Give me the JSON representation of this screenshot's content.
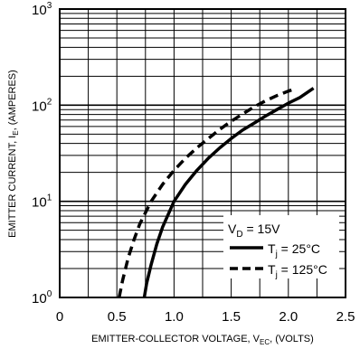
{
  "chart_data": {
    "type": "line",
    "xlabel": {
      "main": "EMITTER-COLLECTOR VOLTAGE, V",
      "sub": "EC",
      "suffix": ", (VOLTS)"
    },
    "ylabel": {
      "main": "EMITTER CURRENT, I",
      "sub": "E",
      "suffix": ", (AMPERES)"
    },
    "xlim": [
      0,
      2.5
    ],
    "ylim": [
      1,
      1000
    ],
    "yscale": "log",
    "grid": true,
    "x_ticks": [
      "0",
      "0.5",
      "1.0",
      "1.5",
      "2.0",
      "2.5"
    ],
    "y_ticks": [
      {
        "base": "10",
        "exp": "0"
      },
      {
        "base": "10",
        "exp": "1"
      },
      {
        "base": "10",
        "exp": "2"
      },
      {
        "base": "10",
        "exp": "3"
      }
    ],
    "legend": {
      "placement": "bottom-right",
      "condition": {
        "main": "V",
        "sub": "D",
        "suffix": " = 15V"
      },
      "entries": [
        {
          "main": "T",
          "sub": "j",
          "suffix": " = 25°C",
          "style": "solid"
        },
        {
          "main": "T",
          "sub": "j",
          "suffix": " = 125°C",
          "style": "dashed"
        }
      ]
    },
    "series": [
      {
        "style": "solid",
        "x": [
          0.74,
          0.76,
          0.8,
          0.85,
          0.9,
          1.0,
          1.1,
          1.2,
          1.3,
          1.4,
          1.5,
          1.6,
          1.7,
          1.8,
          1.9,
          2.0,
          2.1,
          2.22
        ],
        "y": [
          1.0,
          1.4,
          2.2,
          3.6,
          5.4,
          10.0,
          15.0,
          21.0,
          28.0,
          36.0,
          45.0,
          55.0,
          65.0,
          77.0,
          90.0,
          105.0,
          120.0,
          150.0
        ]
      },
      {
        "style": "dashed",
        "x": [
          0.52,
          0.55,
          0.6,
          0.65,
          0.7,
          0.8,
          0.9,
          1.0,
          1.1,
          1.2,
          1.3,
          1.4,
          1.5,
          1.6,
          1.7,
          1.8,
          1.9,
          2.0,
          2.07
        ],
        "y": [
          1.0,
          1.5,
          2.6,
          4.0,
          5.8,
          10.0,
          15.0,
          21.0,
          28.0,
          36.0,
          45.0,
          56.0,
          68.0,
          81.0,
          96.0,
          111.0,
          126.0,
          140.0,
          150.0
        ]
      }
    ]
  }
}
